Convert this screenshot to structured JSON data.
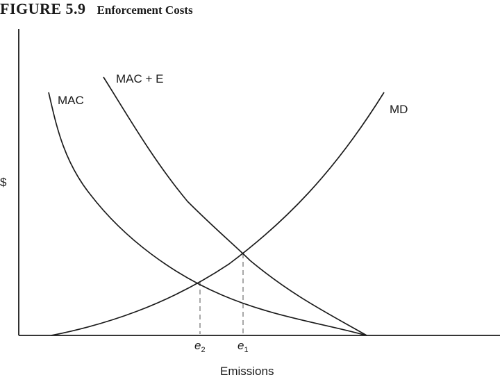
{
  "figure": {
    "number": "FIGURE 5.9",
    "title": "Enforcement Costs"
  },
  "diagram": {
    "y_axis_label": "$",
    "x_axis_label": "Emissions",
    "curves": [
      {
        "id": "mac",
        "label": "MAC"
      },
      {
        "id": "mac_e",
        "label": "MAC + E"
      },
      {
        "id": "md",
        "label": "MD"
      }
    ],
    "markers": [
      {
        "id": "e2",
        "base": "e",
        "sub": "2"
      },
      {
        "id": "e1",
        "base": "e",
        "sub": "1"
      }
    ]
  }
}
